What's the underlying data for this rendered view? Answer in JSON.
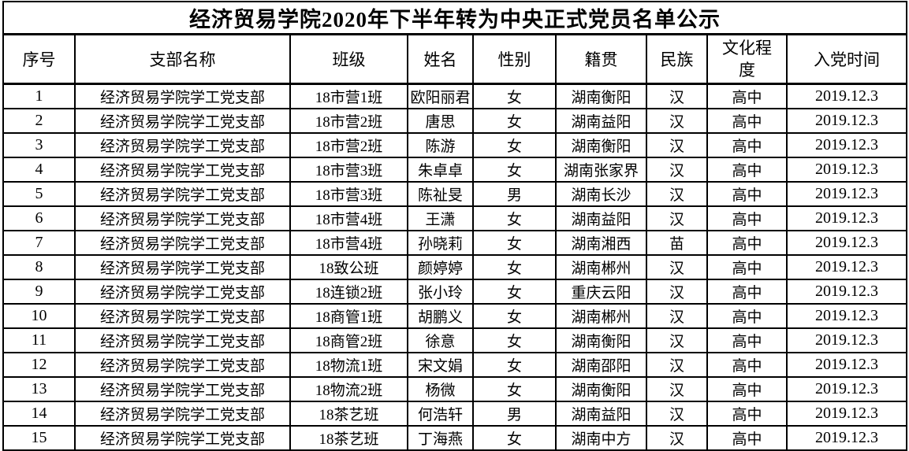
{
  "title": "经济贸易学院2020年下半年转为中央正式党员名单公示",
  "table": {
    "columns": [
      {
        "key": "index",
        "label": "序号"
      },
      {
        "key": "branch",
        "label": "支部名称"
      },
      {
        "key": "class",
        "label": "班级"
      },
      {
        "key": "name",
        "label": "姓名"
      },
      {
        "key": "gender",
        "label": "性别"
      },
      {
        "key": "hometown",
        "label": "籍贯"
      },
      {
        "key": "ethnicity",
        "label": "民族"
      },
      {
        "key": "education",
        "label": "文化程度"
      },
      {
        "key": "join_date",
        "label": "入党时间"
      }
    ],
    "rows": [
      [
        "1",
        "经济贸易学院学工党支部",
        "18市营1班",
        "欧阳丽君",
        "女",
        "湖南衡阳",
        "汉",
        "高中",
        "2019.12.3"
      ],
      [
        "2",
        "经济贸易学院学工党支部",
        "18市营2班",
        "唐思",
        "女",
        "湖南益阳",
        "汉",
        "高中",
        "2019.12.3"
      ],
      [
        "3",
        "经济贸易学院学工党支部",
        "18市营2班",
        "陈游",
        "女",
        "湖南衡阳",
        "汉",
        "高中",
        "2019.12.3"
      ],
      [
        "4",
        "经济贸易学院学工党支部",
        "18市营3班",
        "朱卓卓",
        "女",
        "湖南张家界",
        "汉",
        "高中",
        "2019.12.3"
      ],
      [
        "5",
        "经济贸易学院学工党支部",
        "18市营3班",
        "陈祉旻",
        "男",
        "湖南长沙",
        "汉",
        "高中",
        "2019.12.3"
      ],
      [
        "6",
        "经济贸易学院学工党支部",
        "18市营4班",
        "王潇",
        "女",
        "湖南益阳",
        "汉",
        "高中",
        "2019.12.3"
      ],
      [
        "7",
        "经济贸易学院学工党支部",
        "18市营4班",
        "孙晓莉",
        "女",
        "湖南湘西",
        "苗",
        "高中",
        "2019.12.3"
      ],
      [
        "8",
        "经济贸易学院学工党支部",
        "18致公班",
        "颜婷婷",
        "女",
        "湖南郴州",
        "汉",
        "高中",
        "2019.12.3"
      ],
      [
        "9",
        "经济贸易学院学工党支部",
        "18连锁2班",
        "张小玲",
        "女",
        "重庆云阳",
        "汉",
        "高中",
        "2019.12.3"
      ],
      [
        "10",
        "经济贸易学院学工党支部",
        "18商管1班",
        "胡鹏义",
        "女",
        "湖南郴州",
        "汉",
        "高中",
        "2019.12.3"
      ],
      [
        "11",
        "经济贸易学院学工党支部",
        "18商管2班",
        "徐意",
        "女",
        "湖南衡阳",
        "汉",
        "高中",
        "2019.12.3"
      ],
      [
        "12",
        "经济贸易学院学工党支部",
        "18物流1班",
        "宋文娟",
        "女",
        "湖南邵阳",
        "汉",
        "高中",
        "2019.12.3"
      ],
      [
        "13",
        "经济贸易学院学工党支部",
        "18物流2班",
        "杨微",
        "女",
        "湖南衡阳",
        "汉",
        "高中",
        "2019.12.3"
      ],
      [
        "14",
        "经济贸易学院学工党支部",
        "18茶艺班",
        "何浩轩",
        "男",
        "湖南益阳",
        "汉",
        "高中",
        "2019.12.3"
      ],
      [
        "15",
        "经济贸易学院学工党支部",
        "18茶艺班",
        "丁海燕",
        "女",
        "湖南中方",
        "汉",
        "高中",
        "2019.12.3"
      ]
    ]
  }
}
